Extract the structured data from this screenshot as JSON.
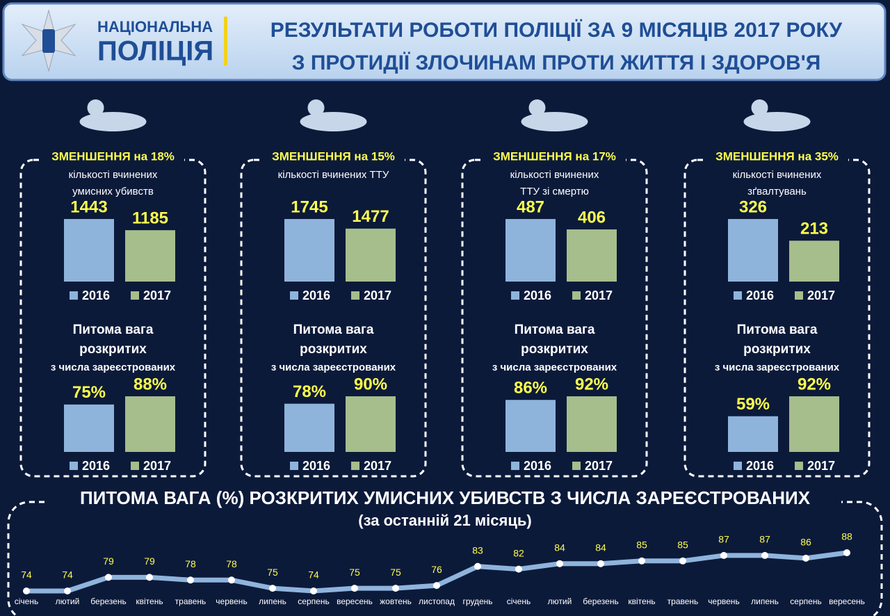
{
  "header": {
    "logo_line1": "НАЦІОНАЛЬНА",
    "logo_line2": "ПОЛІЦІЯ",
    "title_line1": "РЕЗУЛЬТАТИ РОБОТИ ПОЛІЦІЇ ЗА 9 МІСЯЦІВ 2017 РОКУ",
    "title_line2": "З ПРОТИДІЇ ЗЛОЧИНАМ ПРОТИ ЖИТТЯ І ЗДОРОВ'Я"
  },
  "panels": [
    {
      "decrease": "ЗМЕНШЕННЯ на 18%",
      "caption": [
        "кількості вчинених",
        "умисних убивств"
      ]
    },
    {
      "decrease": "ЗМЕНШЕННЯ на 15%",
      "caption": [
        "кількості вчинених ТТУ"
      ]
    },
    {
      "decrease": "ЗМЕНШЕННЯ на 17%",
      "caption": [
        "кількості вчинених",
        "ТТУ зі смертю"
      ]
    },
    {
      "decrease": "ЗМЕНШЕННЯ на 35%",
      "caption": [
        "кількості вчинених",
        "зґвалтувань"
      ]
    }
  ],
  "chart_data": [
    {
      "type": "bar",
      "series": [
        {
          "name": "2016",
          "color": "#8fb4dc",
          "values": [
            1443
          ]
        },
        {
          "name": "2017",
          "color": "#a6bd8c",
          "values": [
            1185
          ]
        }
      ]
    },
    {
      "type": "bar",
      "series": [
        {
          "name": "2016",
          "color": "#8fb4dc",
          "values": [
            1745
          ]
        },
        {
          "name": "2017",
          "color": "#a6bd8c",
          "values": [
            1477
          ]
        }
      ]
    },
    {
      "type": "bar",
      "series": [
        {
          "name": "2016",
          "color": "#8fb4dc",
          "values": [
            487
          ]
        },
        {
          "name": "2017",
          "color": "#a6bd8c",
          "values": [
            406
          ]
        }
      ]
    },
    {
      "type": "bar",
      "series": [
        {
          "name": "2016",
          "color": "#8fb4dc",
          "values": [
            326
          ]
        },
        {
          "name": "2017",
          "color": "#a6bd8c",
          "values": [
            213
          ]
        }
      ]
    },
    {
      "type": "bar",
      "title": [
        "Питома вага",
        "розкритих"
      ],
      "subtitle": "з числа зареєстрованих",
      "series": [
        {
          "name": "2016",
          "color": "#8fb4dc",
          "values": [
            75
          ],
          "value_labels": [
            "75%"
          ]
        },
        {
          "name": "2017",
          "color": "#a6bd8c",
          "values": [
            88
          ],
          "value_labels": [
            "88%"
          ]
        }
      ]
    },
    {
      "type": "bar",
      "title": [
        "Питома вага",
        "розкритих"
      ],
      "subtitle": "з числа зареєстрованих",
      "series": [
        {
          "name": "2016",
          "color": "#8fb4dc",
          "values": [
            78
          ],
          "value_labels": [
            "78%"
          ]
        },
        {
          "name": "2017",
          "color": "#a6bd8c",
          "values": [
            90
          ],
          "value_labels": [
            "90%"
          ]
        }
      ]
    },
    {
      "type": "bar",
      "title": [
        "Питома вага",
        "розкритих"
      ],
      "subtitle": "з числа зареєстрованих",
      "series": [
        {
          "name": "2016",
          "color": "#8fb4dc",
          "values": [
            86
          ],
          "value_labels": [
            "86%"
          ]
        },
        {
          "name": "2017",
          "color": "#a6bd8c",
          "values": [
            92
          ],
          "value_labels": [
            "92%"
          ]
        }
      ]
    },
    {
      "type": "bar",
      "title": [
        "Питома вага",
        "розкритих"
      ],
      "subtitle": "з числа зареєстрованих",
      "series": [
        {
          "name": "2016",
          "color": "#8fb4dc",
          "values": [
            59
          ],
          "value_labels": [
            "59%"
          ]
        },
        {
          "name": "2017",
          "color": "#a6bd8c",
          "values": [
            92
          ],
          "value_labels": [
            "92%"
          ]
        }
      ]
    },
    {
      "type": "line",
      "title": "ПИТОМА ВАГА (%) РОЗКРИТИХ УМИСНИХ УБИВСТВ З ЧИСЛА ЗАРЕЄСТРОВАНИХ",
      "subtitle": "(за останній 21 місяць)",
      "color": "#8fb4dc",
      "categories": [
        "січень",
        "лютий",
        "березень",
        "квітень",
        "травень",
        "червень",
        "липень",
        "серпень",
        "вересень",
        "жовтень",
        "листопад",
        "грудень",
        "січень",
        "лютий",
        "березень",
        "квітень",
        "травень",
        "червень",
        "липень",
        "серпень",
        "вересень"
      ],
      "values": [
        74,
        74,
        79,
        79,
        78,
        78,
        75,
        74,
        75,
        75,
        76,
        83,
        82,
        84,
        84,
        85,
        85,
        87,
        87,
        86,
        88
      ]
    }
  ]
}
